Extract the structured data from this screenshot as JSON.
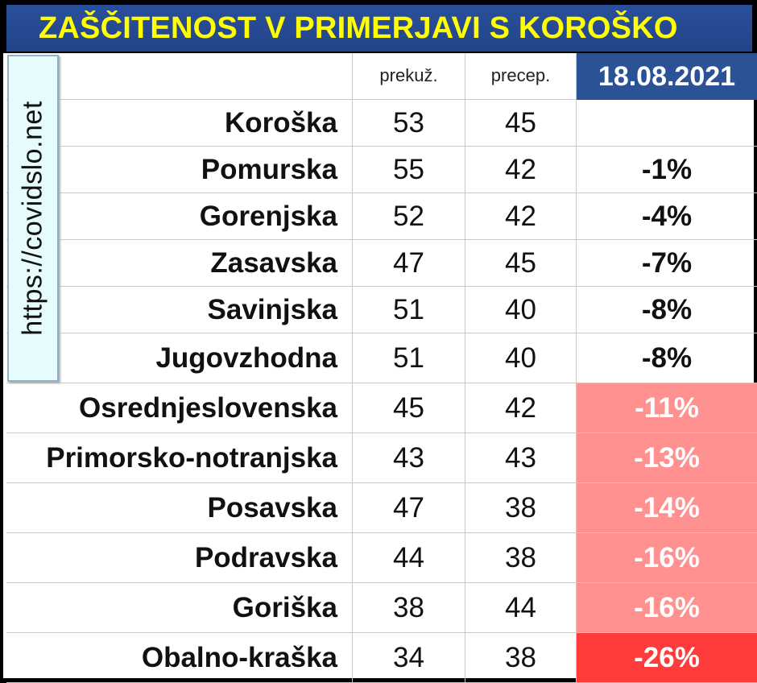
{
  "title": "ZAŠČITENOST V PRIMERJAVI S KOROŠKO",
  "watermark": "https://covidslo.net",
  "colors": {
    "title_bg": "#2a4f9a",
    "title_text": "#ffff00",
    "date_bg": "#2c5296",
    "diff_light_red": "#ff9191",
    "diff_red": "#ff3b3b"
  },
  "chart_data": {
    "type": "table",
    "columns": [
      "",
      "prekuž.",
      "precep.",
      "18.08.2021"
    ],
    "rows": [
      {
        "region": "Koroška",
        "prekuz": 53,
        "precep": 45,
        "diff": ""
      },
      {
        "region": "Pomurska",
        "prekuz": 55,
        "precep": 42,
        "diff": "-1%"
      },
      {
        "region": "Gorenjska",
        "prekuz": 52,
        "precep": 42,
        "diff": "-4%"
      },
      {
        "region": "Zasavska",
        "prekuz": 47,
        "precep": 45,
        "diff": "-7%"
      },
      {
        "region": "Savinjska",
        "prekuz": 51,
        "precep": 40,
        "diff": "-8%"
      },
      {
        "region": "Jugovzhodna",
        "prekuz": 51,
        "precep": 40,
        "diff": "-8%"
      },
      {
        "region": "Osrednjeslovenska",
        "prekuz": 45,
        "precep": 42,
        "diff": "-11%"
      },
      {
        "region": "Primorsko-notranjska",
        "prekuz": 43,
        "precep": 43,
        "diff": "-13%"
      },
      {
        "region": "Posavska",
        "prekuz": 47,
        "precep": 38,
        "diff": "-14%"
      },
      {
        "region": "Podravska",
        "prekuz": 44,
        "precep": 38,
        "diff": "-16%"
      },
      {
        "region": "Goriška",
        "prekuz": 38,
        "precep": 44,
        "diff": "-16%"
      },
      {
        "region": "Obalno-kraška",
        "prekuz": 34,
        "precep": 38,
        "diff": "-26%"
      }
    ]
  }
}
